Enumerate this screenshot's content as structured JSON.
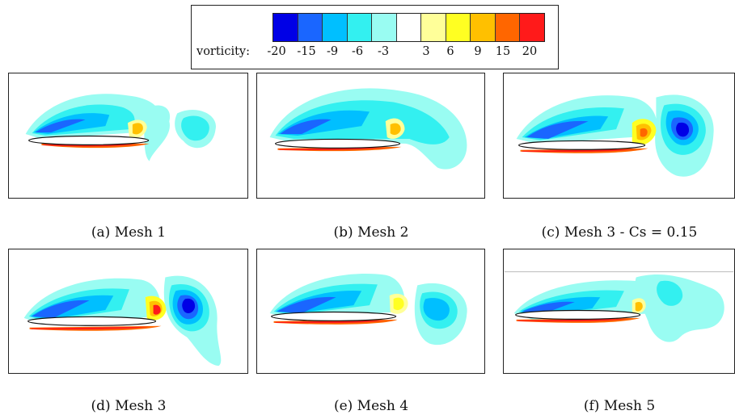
{
  "colorbar": {
    "label": "vorticity:",
    "ticks": [
      "-20",
      "-15",
      "-9",
      "-6",
      "-3",
      "3",
      "6",
      "9",
      "15",
      "20"
    ],
    "colors": [
      "#0000e6",
      "#1a66ff",
      "#00bfff",
      "#33f0f0",
      "#99fcf2",
      "#ffffff",
      "#ffff99",
      "#ffff22",
      "#ffc000",
      "#ff6600",
      "#ff1a1a"
    ]
  },
  "panels": [
    {
      "id": "a",
      "caption": "(a) Mesh 1"
    },
    {
      "id": "b",
      "caption": "(b) Mesh 2"
    },
    {
      "id": "c",
      "caption": "(c) Mesh 3 - Cs = 0.15"
    },
    {
      "id": "d",
      "caption": "(d) Mesh 3"
    },
    {
      "id": "e",
      "caption": "(e) Mesh 4"
    },
    {
      "id": "f",
      "caption": "(f) Mesh 5"
    }
  ]
}
